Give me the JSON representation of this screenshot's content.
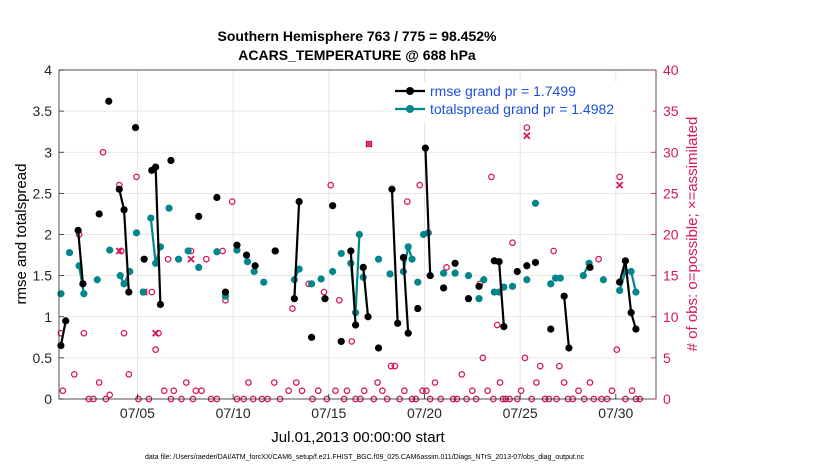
{
  "colors": {
    "rmse": "#000000",
    "spread": "#00868b",
    "obs": "#d6185a",
    "legend_text": "#1f4fd8",
    "grid": "#e0e0e0"
  },
  "chart_data": {
    "type": "scatter",
    "title_line1": "Southern Hemisphere 763 / 775 = 98.452%",
    "title_line2": "ACARS_TEMPERATURE @ 688 hPa",
    "xlabel": "Jul.01,2013 00:00:00 start",
    "ylabel_left": "rmse and totalspread",
    "ylabel_right": "# of obs: o=possible; ×=assimilated",
    "footnote": "data file: /Users/raeder/DAI/ATM_forcXX/CAM6_setup/f.e21.FHIST_BGC.f09_025.CAM6assim.011/Diags_NTrS_2013-07/obs_diag_output.nc",
    "xlim": [
      0.9,
      32.1
    ],
    "ylim_left": [
      0,
      4
    ],
    "ylim_right": [
      0,
      40
    ],
    "xticks": [
      5,
      10,
      15,
      20,
      25,
      30
    ],
    "xtick_labels": [
      "07/05",
      "07/10",
      "07/15",
      "07/20",
      "07/25",
      "07/30"
    ],
    "yticks_left": [
      0,
      0.5,
      1,
      1.5,
      2,
      2.5,
      3,
      3.5,
      4
    ],
    "ytick_labels_left": [
      "0",
      "0.5",
      "1",
      "1.5",
      "2",
      "2.5",
      "3",
      "3.5",
      "4"
    ],
    "yticks_right": [
      0,
      5,
      10,
      15,
      20,
      25,
      30,
      35,
      40
    ],
    "ytick_labels_right": [
      "0",
      "5",
      "10",
      "15",
      "20",
      "25",
      "30",
      "35",
      "40"
    ],
    "legend": [
      {
        "name": "rmse",
        "label": "rmse grand pr = 1.7499"
      },
      {
        "name": "totalspread",
        "label": "totalspread grand pr = 1.4982"
      }
    ],
    "rmse_segments": [
      [
        [
          1.0,
          0.65
        ],
        [
          1.25,
          0.95
        ]
      ],
      [
        [
          1.9,
          2.05
        ],
        [
          2.15,
          1.4
        ]
      ],
      [
        [
          3.0,
          2.25
        ]
      ],
      [
        [
          3.5,
          3.62
        ]
      ],
      [
        [
          4.05,
          2.55
        ],
        [
          4.3,
          2.3
        ],
        [
          4.55,
          1.3
        ]
      ],
      [
        [
          4.9,
          3.3
        ]
      ],
      [
        [
          5.35,
          1.7
        ]
      ],
      [
        [
          5.75,
          2.78
        ],
        [
          5.95,
          2.82
        ],
        [
          6.2,
          1.15
        ]
      ],
      [
        [
          6.75,
          2.9
        ]
      ],
      [
        [
          8.2,
          2.22
        ]
      ],
      [
        [
          9.15,
          2.45
        ]
      ],
      [
        [
          9.6,
          1.3
        ]
      ],
      [
        [
          10.2,
          1.87
        ]
      ],
      [
        [
          10.7,
          1.75
        ]
      ],
      [
        [
          11.15,
          1.62
        ]
      ],
      [
        [
          12.2,
          1.8
        ]
      ],
      [
        [
          13.2,
          1.22
        ],
        [
          13.45,
          2.4
        ]
      ],
      [
        [
          14.1,
          0.75
        ]
      ],
      [
        [
          14.8,
          1.22
        ]
      ],
      [
        [
          15.2,
          2.35
        ]
      ],
      [
        [
          15.65,
          0.7
        ]
      ],
      [
        [
          16.15,
          1.8
        ],
        [
          16.4,
          0.9
        ]
      ],
      [
        [
          16.8,
          1.6
        ],
        [
          17.05,
          1.0
        ]
      ],
      [
        [
          17.6,
          0.62
        ]
      ],
      [
        [
          18.3,
          2.55
        ],
        [
          18.6,
          0.92
        ]
      ],
      [
        [
          18.9,
          1.72
        ],
        [
          19.15,
          0.8
        ]
      ],
      [
        [
          19.65,
          1.1
        ]
      ],
      [
        [
          20.05,
          3.05
        ],
        [
          20.3,
          1.5
        ]
      ],
      [
        [
          21.0,
          1.35
        ]
      ],
      [
        [
          21.6,
          1.65
        ]
      ],
      [
        [
          22.3,
          1.22
        ]
      ],
      [
        [
          22.85,
          1.37
        ]
      ],
      [
        [
          23.65,
          1.68
        ],
        [
          23.9,
          1.67
        ],
        [
          24.15,
          0.88
        ]
      ],
      [
        [
          24.85,
          1.55
        ]
      ],
      [
        [
          25.35,
          1.62
        ]
      ],
      [
        [
          25.8,
          1.66
        ]
      ],
      [
        [
          26.6,
          0.85
        ]
      ],
      [
        [
          27.3,
          1.25
        ],
        [
          27.55,
          0.62
        ]
      ],
      [
        [
          28.65,
          1.6
        ]
      ],
      [
        [
          30.2,
          1.42
        ],
        [
          30.5,
          1.68
        ],
        [
          30.8,
          1.05
        ],
        [
          31.05,
          0.85
        ]
      ]
    ],
    "spread_segments": [
      [
        [
          1.0,
          1.28
        ]
      ],
      [
        [
          1.45,
          1.78
        ]
      ],
      [
        [
          1.95,
          1.62
        ],
        [
          2.2,
          1.28
        ]
      ],
      [
        [
          2.9,
          1.45
        ]
      ],
      [
        [
          3.55,
          1.81
        ]
      ],
      [
        [
          4.1,
          1.5
        ],
        [
          4.3,
          1.4
        ],
        [
          4.6,
          1.55
        ]
      ],
      [
        [
          4.95,
          2.02
        ]
      ],
      [
        [
          5.3,
          1.3
        ]
      ],
      [
        [
          5.7,
          2.2
        ],
        [
          5.95,
          1.65
        ],
        [
          6.2,
          1.85
        ]
      ],
      [
        [
          6.65,
          2.32
        ]
      ],
      [
        [
          7.15,
          1.7
        ]
      ],
      [
        [
          7.65,
          1.8
        ]
      ],
      [
        [
          8.2,
          1.6
        ]
      ],
      [
        [
          9.15,
          1.79
        ]
      ],
      [
        [
          9.6,
          1.25
        ]
      ],
      [
        [
          10.2,
          1.81
        ]
      ],
      [
        [
          10.75,
          1.67
        ]
      ],
      [
        [
          11.1,
          1.55
        ]
      ],
      [
        [
          11.6,
          1.42
        ]
      ],
      [
        [
          12.2,
          1.8
        ]
      ],
      [
        [
          13.2,
          1.45
        ],
        [
          13.45,
          1.58
        ]
      ],
      [
        [
          14.1,
          1.4
        ]
      ],
      [
        [
          14.6,
          1.46
        ]
      ],
      [
        [
          15.2,
          1.55
        ]
      ],
      [
        [
          15.65,
          1.77
        ]
      ],
      [
        [
          16.15,
          1.65
        ],
        [
          16.4,
          1.05
        ],
        [
          16.6,
          2.0
        ]
      ],
      [
        [
          16.8,
          1.48
        ]
      ],
      [
        [
          17.6,
          1.7
        ]
      ],
      [
        [
          18.2,
          1.52
        ]
      ],
      [
        [
          18.9,
          1.55
        ],
        [
          19.15,
          1.85
        ],
        [
          19.35,
          1.7
        ]
      ],
      [
        [
          19.65,
          1.42
        ]
      ],
      [
        [
          19.95,
          2.0
        ],
        [
          20.2,
          2.02
        ]
      ],
      [
        [
          21.0,
          1.53
        ]
      ],
      [
        [
          21.6,
          1.53
        ]
      ],
      [
        [
          22.3,
          1.5
        ]
      ],
      [
        [
          22.85,
          1.22
        ]
      ],
      [
        [
          23.1,
          1.45
        ]
      ],
      [
        [
          23.65,
          1.3
        ],
        [
          23.9,
          1.3
        ],
        [
          24.15,
          1.36
        ]
      ],
      [
        [
          24.6,
          1.37
        ]
      ],
      [
        [
          25.35,
          1.45
        ]
      ],
      [
        [
          25.8,
          2.38
        ]
      ],
      [
        [
          26.6,
          1.4
        ]
      ],
      [
        [
          26.85,
          1.47
        ],
        [
          27.1,
          1.47
        ]
      ],
      [
        [
          28.3,
          1.5
        ],
        [
          28.6,
          1.65
        ]
      ],
      [
        [
          29.35,
          1.45
        ]
      ],
      [
        [
          30.2,
          1.32
        ],
        [
          30.5,
          1.55
        ],
        [
          30.8,
          1.55
        ],
        [
          31.05,
          1.3
        ]
      ]
    ],
    "obs_possible": [
      [
        1.0,
        8
      ],
      [
        1.1,
        1
      ],
      [
        1.7,
        3
      ],
      [
        1.95,
        20
      ],
      [
        2.2,
        8
      ],
      [
        2.45,
        0
      ],
      [
        2.7,
        0
      ],
      [
        3.0,
        2
      ],
      [
        3.2,
        30
      ],
      [
        3.35,
        0
      ],
      [
        3.55,
        0.5
      ],
      [
        4.05,
        26
      ],
      [
        4.15,
        18
      ],
      [
        4.3,
        8
      ],
      [
        4.55,
        3
      ],
      [
        4.95,
        27
      ],
      [
        5.05,
        0
      ],
      [
        5.35,
        13
      ],
      [
        5.6,
        0
      ],
      [
        5.75,
        13
      ],
      [
        5.95,
        6
      ],
      [
        6.1,
        8
      ],
      [
        6.4,
        1
      ],
      [
        6.6,
        17
      ],
      [
        6.75,
        0
      ],
      [
        6.9,
        1
      ],
      [
        7.3,
        0
      ],
      [
        7.55,
        2
      ],
      [
        7.8,
        18
      ],
      [
        7.9,
        0
      ],
      [
        8.05,
        1
      ],
      [
        8.35,
        1
      ],
      [
        8.6,
        17
      ],
      [
        8.85,
        0
      ],
      [
        9.15,
        0
      ],
      [
        9.45,
        18
      ],
      [
        9.6,
        12
      ],
      [
        9.95,
        24
      ],
      [
        10.2,
        0
      ],
      [
        10.55,
        0
      ],
      [
        10.8,
        2
      ],
      [
        11.05,
        0
      ],
      [
        11.5,
        0
      ],
      [
        11.8,
        0
      ],
      [
        12.15,
        2
      ],
      [
        12.45,
        0
      ],
      [
        12.9,
        1
      ],
      [
        13.1,
        11
      ],
      [
        13.3,
        2
      ],
      [
        13.6,
        1
      ],
      [
        13.95,
        14
      ],
      [
        14.15,
        0
      ],
      [
        14.45,
        1
      ],
      [
        14.75,
        13
      ],
      [
        14.9,
        0
      ],
      [
        15.1,
        26
      ],
      [
        15.35,
        1
      ],
      [
        15.55,
        12
      ],
      [
        15.8,
        0
      ],
      [
        15.95,
        1
      ],
      [
        16.2,
        7
      ],
      [
        16.4,
        0
      ],
      [
        16.65,
        0
      ],
      [
        16.85,
        1
      ],
      [
        17.1,
        31
      ],
      [
        17.35,
        0
      ],
      [
        17.55,
        2
      ],
      [
        17.8,
        1
      ],
      [
        18.05,
        0
      ],
      [
        18.25,
        4
      ],
      [
        18.45,
        4
      ],
      [
        18.7,
        0
      ],
      [
        18.95,
        1
      ],
      [
        19.1,
        24
      ],
      [
        19.35,
        0
      ],
      [
        19.55,
        0
      ],
      [
        19.75,
        26
      ],
      [
        19.9,
        1
      ],
      [
        20.1,
        1
      ],
      [
        20.3,
        0
      ],
      [
        20.55,
        2
      ],
      [
        20.85,
        0
      ],
      [
        21.15,
        16
      ],
      [
        21.5,
        0
      ],
      [
        21.7,
        0
      ],
      [
        21.95,
        3
      ],
      [
        22.2,
        0
      ],
      [
        22.5,
        1
      ],
      [
        22.7,
        0
      ],
      [
        22.9,
        14
      ],
      [
        23.05,
        5
      ],
      [
        23.3,
        1
      ],
      [
        23.5,
        27
      ],
      [
        23.6,
        0
      ],
      [
        23.8,
        9
      ],
      [
        23.95,
        2
      ],
      [
        24.1,
        0
      ],
      [
        24.25,
        0
      ],
      [
        24.45,
        0
      ],
      [
        24.6,
        19
      ],
      [
        24.85,
        0
      ],
      [
        25.05,
        1
      ],
      [
        25.25,
        5
      ],
      [
        25.35,
        33
      ],
      [
        25.6,
        0
      ],
      [
        25.85,
        2
      ],
      [
        26.05,
        4
      ],
      [
        26.3,
        0
      ],
      [
        26.5,
        0
      ],
      [
        26.75,
        18
      ],
      [
        26.9,
        0
      ],
      [
        27.05,
        4
      ],
      [
        27.3,
        2
      ],
      [
        27.5,
        0
      ],
      [
        27.75,
        0
      ],
      [
        28.05,
        1
      ],
      [
        28.35,
        0
      ],
      [
        28.65,
        2
      ],
      [
        28.85,
        0
      ],
      [
        29.1,
        17
      ],
      [
        29.25,
        0
      ],
      [
        29.55,
        0
      ],
      [
        29.8,
        1
      ],
      [
        30.05,
        6
      ],
      [
        30.2,
        27
      ],
      [
        30.5,
        0
      ],
      [
        30.85,
        1
      ],
      [
        31.05,
        0
      ],
      [
        31.25,
        0
      ]
    ],
    "obs_assimilated": [
      [
        4.05,
        18
      ],
      [
        5.35,
        13
      ],
      [
        5.95,
        8
      ],
      [
        7.8,
        17
      ],
      [
        17.1,
        31
      ],
      [
        25.35,
        32
      ],
      [
        30.2,
        26
      ]
    ]
  }
}
